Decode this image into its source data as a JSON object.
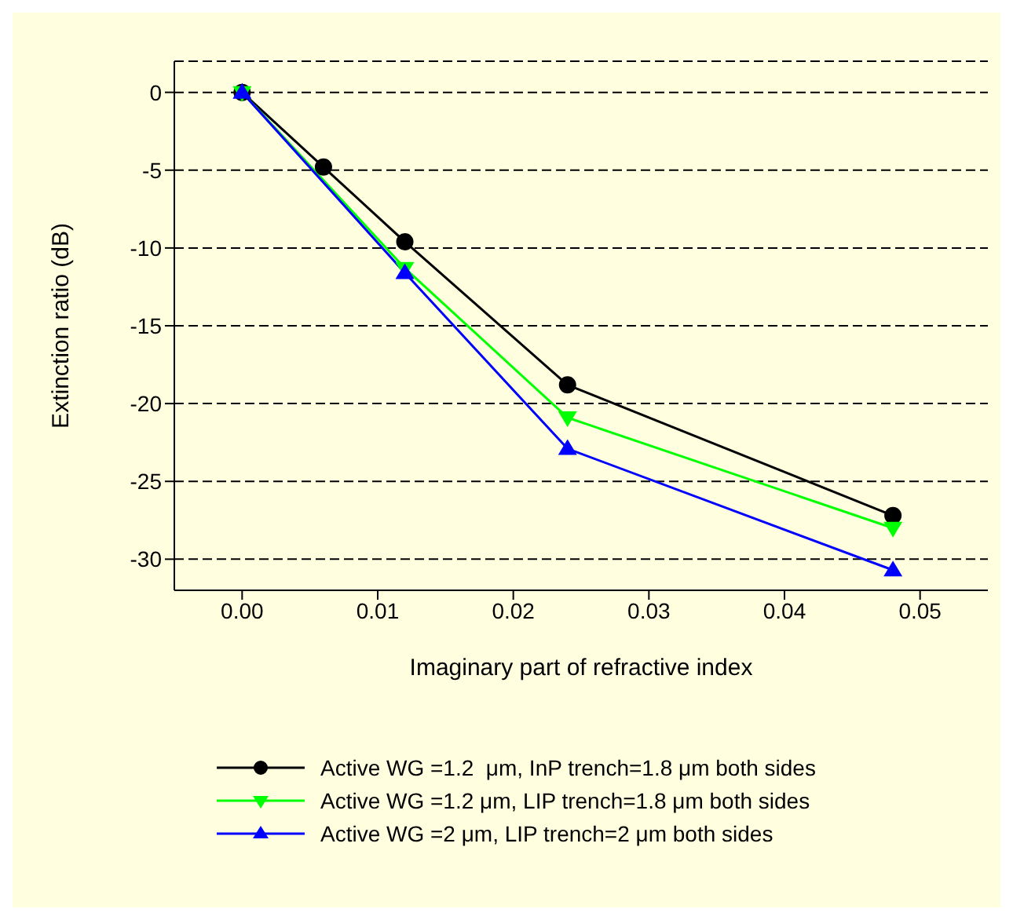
{
  "chart_data": {
    "type": "line",
    "xlabel": "Imaginary part of refractive index",
    "ylabel": "Extinction ratio (dB)",
    "xlim": [
      -0.005,
      0.055
    ],
    "xticks": [
      {
        "value": 0,
        "label": "0.00"
      },
      {
        "value": 0.01,
        "label": "0.01"
      },
      {
        "value": 0.02,
        "label": "0.02"
      },
      {
        "value": 0.03,
        "label": "0.03"
      },
      {
        "value": 0.04,
        "label": "0.04"
      },
      {
        "value": 0.05,
        "label": "0.05"
      }
    ],
    "ylim": [
      -32,
      2
    ],
    "yticks": [
      0,
      -5,
      -10,
      -15,
      -20,
      -25,
      -30
    ],
    "grid": "y",
    "legend": "bottom",
    "series": [
      {
        "name": "Active WG =1.2  μm, InP trench=1.8 μm both sides",
        "color": "#000000",
        "marker": "circle",
        "x": [
          0,
          0.006,
          0.012,
          0.024,
          0.048
        ],
        "values": [
          0,
          -4.8,
          -9.6,
          -18.8,
          -27.2
        ]
      },
      {
        "name": "Active WG =1.2 μm, LIP trench=1.8 μm both sides",
        "color": "#00ff00",
        "marker": "triangle_down",
        "x": [
          0,
          0.012,
          0.024,
          0.048
        ],
        "values": [
          0,
          -11.3,
          -20.9,
          -28.0
        ]
      },
      {
        "name": "Active WG =2 μm, LIP trench=2 μm both sides",
        "color": "#0000ff",
        "marker": "triangle",
        "x": [
          0,
          0.012,
          0.024,
          0.048
        ],
        "values": [
          0,
          -11.6,
          -22.9,
          -30.7
        ]
      }
    ]
  }
}
